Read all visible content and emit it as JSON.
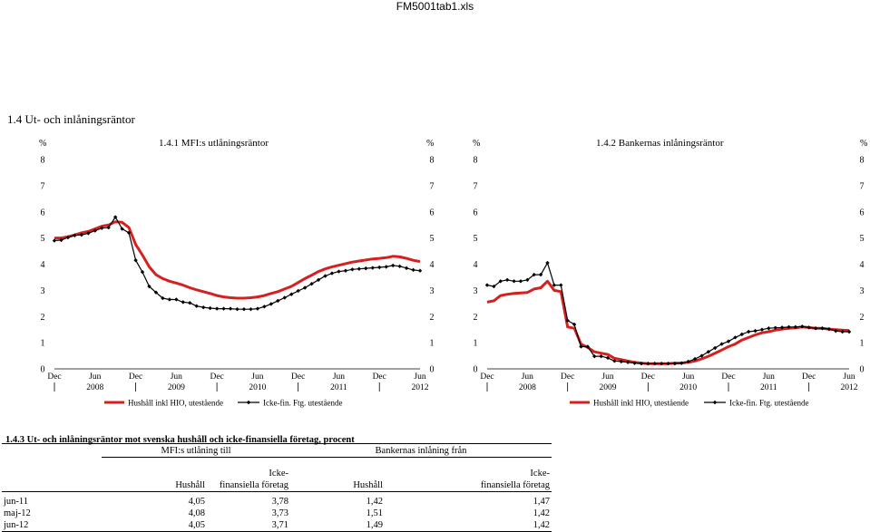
{
  "page": {
    "doc_title": "FM5001tab1.xls",
    "section_title": "1.4 Ut- och inlåningsräntor"
  },
  "chart_data": [
    {
      "type": "line",
      "title": "1.4.1 MFI:s utlåningsräntor",
      "y_unit_left": "%",
      "y_unit_right": "%",
      "ylim": [
        0,
        8
      ],
      "yticks": [
        "0",
        "1",
        "2",
        "3",
        "4",
        "5",
        "6",
        "7",
        "8"
      ],
      "x_month_labels": [
        "Dec",
        "Jun",
        "Dec",
        "Jun",
        "Dec",
        "Jun",
        "Dec",
        "Jun",
        "Dec",
        "Jun"
      ],
      "x_year_labels": [
        "2008",
        "2009",
        "2010",
        "2011",
        "2012"
      ],
      "x_range": [
        "2007-12",
        "2012-06"
      ],
      "grid": false,
      "legend_position": "bottom",
      "series": [
        {
          "name": "Hushåll inkl HIO, utestående",
          "color": "#d62020",
          "marker": "none",
          "values": [
            5.0,
            5.0,
            5.05,
            5.12,
            5.2,
            5.25,
            5.35,
            5.45,
            5.5,
            5.62,
            5.6,
            5.4,
            4.75,
            4.35,
            3.9,
            3.6,
            3.45,
            3.35,
            3.28,
            3.2,
            3.1,
            3.02,
            2.95,
            2.88,
            2.8,
            2.75,
            2.72,
            2.7,
            2.7,
            2.72,
            2.75,
            2.8,
            2.88,
            2.95,
            3.05,
            3.15,
            3.3,
            3.45,
            3.58,
            3.72,
            3.82,
            3.9,
            3.96,
            4.02,
            4.08,
            4.12,
            4.16,
            4.2,
            4.22,
            4.25,
            4.3,
            4.28,
            4.22,
            4.15,
            4.1
          ]
        },
        {
          "name": "Icke-fin. Ftg. utestående",
          "color": "#000000",
          "marker": "diamond",
          "values": [
            4.9,
            4.92,
            5.02,
            5.1,
            5.12,
            5.18,
            5.28,
            5.38,
            5.4,
            5.8,
            5.35,
            5.2,
            4.15,
            3.7,
            3.15,
            2.92,
            2.7,
            2.65,
            2.65,
            2.55,
            2.52,
            2.4,
            2.35,
            2.32,
            2.3,
            2.3,
            2.3,
            2.28,
            2.28,
            2.28,
            2.3,
            2.38,
            2.48,
            2.6,
            2.72,
            2.85,
            2.98,
            3.1,
            3.25,
            3.4,
            3.55,
            3.65,
            3.72,
            3.75,
            3.8,
            3.82,
            3.84,
            3.86,
            3.88,
            3.9,
            3.95,
            3.92,
            3.85,
            3.78,
            3.75
          ]
        }
      ]
    },
    {
      "type": "line",
      "title": "1.4.2 Bankernas inlåningsräntor",
      "y_unit_left": "%",
      "y_unit_right": "%",
      "ylim": [
        0,
        8
      ],
      "yticks": [
        "0",
        "1",
        "2",
        "3",
        "4",
        "5",
        "6",
        "7",
        "8"
      ],
      "x_month_labels": [
        "Dec",
        "Jun",
        "Dec",
        "Jun",
        "Dec",
        "Jun",
        "Dec",
        "Jun",
        "Dec",
        "Jun"
      ],
      "x_year_labels": [
        "2008",
        "2009",
        "2010",
        "2011",
        "2012"
      ],
      "x_range": [
        "2007-12",
        "2012-06"
      ],
      "grid": false,
      "legend_position": "bottom",
      "series": [
        {
          "name": "Hushåll inkl HIO, utestående",
          "color": "#d62020",
          "marker": "none",
          "values": [
            2.55,
            2.6,
            2.8,
            2.85,
            2.88,
            2.9,
            2.92,
            3.05,
            3.1,
            3.35,
            3.0,
            2.95,
            1.6,
            1.55,
            0.95,
            0.82,
            0.65,
            0.6,
            0.55,
            0.4,
            0.35,
            0.3,
            0.25,
            0.22,
            0.2,
            0.2,
            0.2,
            0.2,
            0.22,
            0.22,
            0.25,
            0.3,
            0.38,
            0.48,
            0.6,
            0.72,
            0.85,
            0.95,
            1.1,
            1.2,
            1.3,
            1.38,
            1.42,
            1.48,
            1.52,
            1.55,
            1.57,
            1.6,
            1.58,
            1.55,
            1.55,
            1.52,
            1.5,
            1.48,
            1.47
          ]
        },
        {
          "name": "Icke-fin. Ftg. utestående",
          "color": "#000000",
          "marker": "diamond",
          "values": [
            3.2,
            3.15,
            3.35,
            3.4,
            3.35,
            3.35,
            3.4,
            3.6,
            3.6,
            4.05,
            3.2,
            3.2,
            1.85,
            1.7,
            0.85,
            0.85,
            0.48,
            0.48,
            0.42,
            0.3,
            0.28,
            0.25,
            0.22,
            0.2,
            0.2,
            0.2,
            0.2,
            0.2,
            0.2,
            0.22,
            0.28,
            0.38,
            0.5,
            0.65,
            0.8,
            0.95,
            1.05,
            1.2,
            1.32,
            1.42,
            1.45,
            1.5,
            1.55,
            1.57,
            1.58,
            1.6,
            1.6,
            1.62,
            1.58,
            1.55,
            1.55,
            1.52,
            1.45,
            1.42,
            1.42
          ]
        }
      ]
    },
    {
      "type": "table",
      "title": "1.4.3 Ut- och inlåningsräntor mot svenska hushåll och icke-finansiella företag, procent",
      "group_headers": [
        "MFI:s utlåning till",
        "Bankernas inlåning från"
      ],
      "columns": [
        "Hushåll",
        "Icke-finansiella företag",
        "Hushåll",
        "Icke-finansiella företag"
      ],
      "rows": [
        {
          "label": "jun-11",
          "values": [
            "4,05",
            "3,78",
            "1,42",
            "1,47"
          ]
        },
        {
          "label": "maj-12",
          "values": [
            "4,08",
            "3,73",
            "1,51",
            "1,42"
          ]
        },
        {
          "label": "jun-12",
          "values": [
            "4,05",
            "3,71",
            "1,49",
            "1,42"
          ]
        }
      ]
    }
  ],
  "table_header": {
    "icke_line1": "Icke-",
    "icke_line2": "finansiella företag"
  }
}
